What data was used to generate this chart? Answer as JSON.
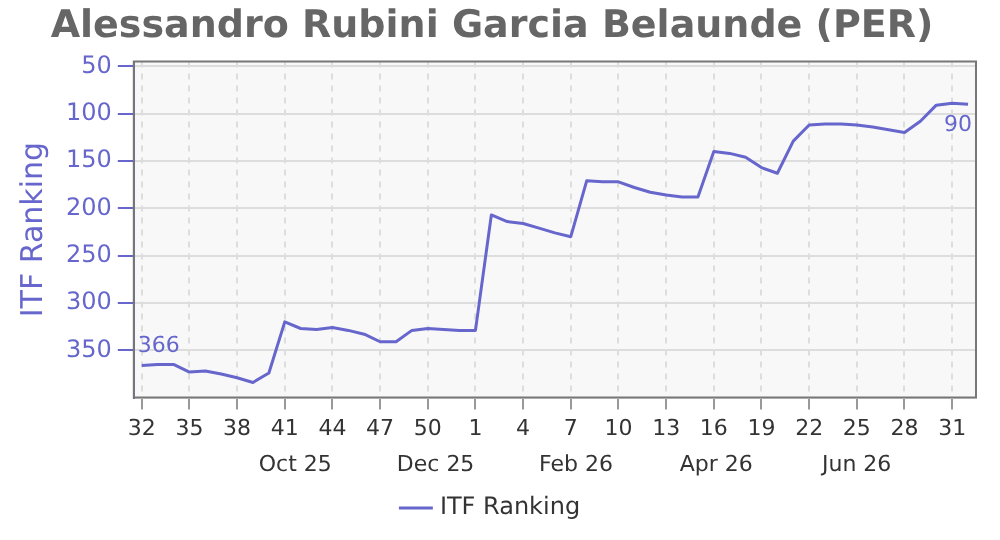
{
  "chart_data": {
    "type": "line",
    "title": "Alessandro Rubini Garcia Belaunde (PER)",
    "ylabel": "ITF Ranking",
    "categories": [
      "32",
      null,
      null,
      "35",
      null,
      null,
      "38",
      null,
      null,
      "41",
      null,
      null,
      "44",
      null,
      null,
      "47",
      null,
      null,
      "50",
      null,
      null,
      "1",
      null,
      null,
      "4",
      null,
      null,
      "7",
      null,
      null,
      "10",
      null,
      null,
      "13",
      null,
      null,
      "16",
      null,
      null,
      "19",
      null,
      null,
      "22",
      null,
      null,
      "25",
      null,
      null,
      "28",
      null,
      null,
      "31",
      null
    ],
    "series": [
      {
        "name": "ITF Ranking",
        "color": "#6666cc",
        "values": [
          366,
          365,
          365,
          373,
          372,
          375,
          379,
          384,
          374,
          320,
          327,
          328,
          326,
          329,
          333,
          341,
          341,
          329,
          327,
          328,
          329,
          329,
          207,
          214,
          216,
          221,
          226,
          230,
          171,
          172,
          172,
          178,
          183,
          186,
          188,
          188,
          140,
          142,
          146,
          157,
          163,
          129,
          112,
          111,
          111,
          112,
          114,
          117,
          120,
          108,
          91,
          89,
          90
        ],
        "value_labels": [
          "366",
          null,
          null,
          null,
          null,
          null,
          null,
          null,
          null,
          null,
          null,
          null,
          null,
          null,
          null,
          null,
          null,
          null,
          null,
          null,
          null,
          null,
          null,
          null,
          null,
          null,
          null,
          null,
          null,
          null,
          null,
          null,
          null,
          null,
          null,
          null,
          null,
          null,
          null,
          null,
          null,
          null,
          null,
          null,
          null,
          null,
          null,
          null,
          null,
          null,
          null,
          null,
          "90"
        ]
      }
    ],
    "ylim": [
      400,
      45
    ],
    "yticks": [
      50,
      100,
      150,
      200,
      250,
      300,
      350
    ],
    "annotations": [
      "Oct 25",
      "Dec 25",
      "Feb 26",
      "Apr 26",
      "Jun 26"
    ],
    "grid": true,
    "legend": "bottom",
    "marker": "none",
    "line_style": "solid"
  }
}
